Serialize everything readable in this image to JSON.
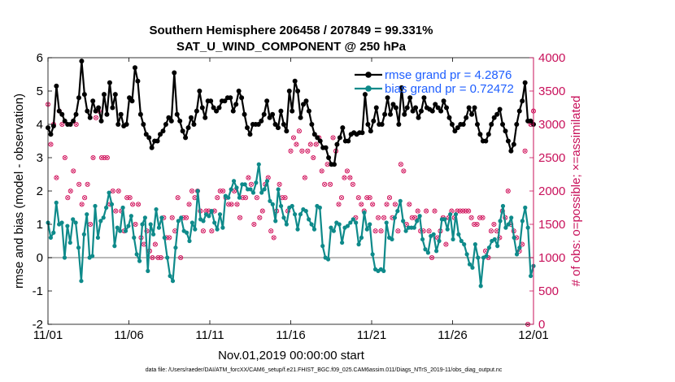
{
  "chart_data": {
    "type": "line",
    "title_line1": "Southern Hemisphere 206458 / 207849 = 99.331%",
    "title_line2": "SAT_U_WIND_COMPONENT @ 250 hPa",
    "xlabel": "Nov.01,2019 00:00:00 start",
    "ylabel_left": "rmse and bias (model - observation)",
    "ylabel_right": "# of obs: o=possible; ×=assimilated",
    "footer": "data file: /Users/raeder/DAI/ATM_forcXX/CAM6_setup/f.e21.FHIST_BGC.f09_025.CAM6assim.011/Diags_NTrS_2019-11/obs_diag_output.nc",
    "x_ticks": [
      "11/01",
      "11/06",
      "11/11",
      "11/16",
      "11/21",
      "11/26",
      "12/01"
    ],
    "xlim": [
      0,
      30
    ],
    "y_left_ticks": [
      "-2",
      "-1",
      "0",
      "1",
      "2",
      "3",
      "4",
      "5",
      "6"
    ],
    "ylim_left": [
      -2,
      6
    ],
    "y_right_ticks": [
      "0",
      "500",
      "1000",
      "1500",
      "2000",
      "2500",
      "3000",
      "3500",
      "4000"
    ],
    "ylim_right": [
      0,
      4000
    ],
    "colors": {
      "rmse": "#000000",
      "bias": "#0e8a8a",
      "obs": "#d0105a",
      "zero": "#a0a0a0",
      "right_axis": "#c8105a",
      "legend_text": "#1f5fff"
    },
    "series": [
      {
        "name": "rmse grand pr = 4.2876",
        "axis": "left",
        "values": [
          3.9,
          3.7,
          3.95,
          5.15,
          4.4,
          4.3,
          4.1,
          4.0,
          4.0,
          4.1,
          4.3,
          4.8,
          5.9,
          4.9,
          4.4,
          4.2,
          4.7,
          4.4,
          4.5,
          4.1,
          4.9,
          4.3,
          5.25,
          4.5,
          4.9,
          4.0,
          4.3,
          3.95,
          4.0,
          4.8,
          4.7,
          5.7,
          5.3,
          4.3,
          4.0,
          3.7,
          3.6,
          3.3,
          3.5,
          3.5,
          3.7,
          3.8,
          4.0,
          4.2,
          4.1,
          5.55,
          4.3,
          4.1,
          3.8,
          3.6,
          3.9,
          4.2,
          4.0,
          4.4,
          5.0,
          4.5,
          4.2,
          4.7,
          4.7,
          4.5,
          4.4,
          4.5,
          4.7,
          4.7,
          4.8,
          4.8,
          4.4,
          4.6,
          5.0,
          4.8,
          4.3,
          3.9,
          3.7,
          4.0,
          4.0,
          4.0,
          4.1,
          4.3,
          4.7,
          4.2,
          4.3,
          4.0,
          3.9,
          4.4,
          4.0,
          3.8,
          5.0,
          4.4,
          5.3,
          5.0,
          4.2,
          4.6,
          4.7,
          4.4,
          4.0,
          3.7,
          3.6,
          3.5,
          3.3,
          3.3,
          3.0,
          2.8,
          2.8,
          3.4,
          3.6,
          3.9,
          3.5,
          3.5,
          3.7,
          3.75,
          3.7,
          3.75,
          3.75,
          4.9,
          4.0,
          3.8,
          4.1,
          4.5,
          4.0,
          4.0,
          4.3,
          4.8,
          4.3,
          4.6,
          4.5,
          4.0,
          5.1,
          4.3,
          4.5,
          4.8,
          4.4,
          4.5,
          4.2,
          4.4,
          4.8,
          4.5,
          4.45,
          4.4,
          4.6,
          4.5,
          4.4,
          4.7,
          4.5,
          4.2,
          4.0,
          3.8,
          3.9,
          4.0,
          4.0,
          4.2,
          4.5,
          4.3,
          4.5,
          4.0,
          3.7,
          3.5,
          3.5,
          3.7,
          4.0,
          4.2,
          4.3,
          4.45,
          4.0,
          3.8,
          3.5,
          3.2,
          3.4,
          4.0,
          4.4,
          4.7,
          5.25,
          4.1,
          4.1,
          4.0
        ]
      },
      {
        "name": "bias grand pr = 0.72472",
        "axis": "left",
        "values": [
          1.05,
          0.6,
          0.75,
          1.65,
          1.0,
          1.05,
          0.0,
          0.95,
          0.45,
          1.15,
          1.05,
          0.3,
          -0.7,
          0.7,
          1.3,
          0.0,
          0.05,
          1.55,
          0.6,
          1.1,
          1.2,
          1.5,
          1.95,
          1.6,
          0.35,
          0.9,
          0.8,
          1.5,
          0.8,
          0.95,
          1.25,
          0.6,
          0.1,
          -0.1,
          1.0,
          1.2,
          -0.4,
          1.0,
          0.7,
          1.45,
          0.9,
          1.2,
          0.6,
          0.0,
          -0.55,
          -0.7,
          0.3,
          1.1,
          1.2,
          0.8,
          0.75,
          0.5,
          1.05,
          0.85,
          2.0,
          1.15,
          1.1,
          1.3,
          1.25,
          1.4,
          1.05,
          0.85,
          1.3,
          0.9,
          1.85,
          1.8,
          2.05,
          2.3,
          2.1,
          1.8,
          2.2,
          2.2,
          2.05,
          2.05,
          1.95,
          2.25,
          2.8,
          1.95,
          2.05,
          2.3,
          1.7,
          1.6,
          1.1,
          2.05,
          1.55,
          1.2,
          1.0,
          1.5,
          1.55,
          1.3,
          0.85,
          1.3,
          1.45,
          1.4,
          1.15,
          1.0,
          0.85,
          1.55,
          1.5,
          0.35,
          0.0,
          -0.05,
          0.9,
          0.8,
          1.05,
          1.0,
          0.45,
          0.9,
          0.95,
          1.05,
          1.15,
          1.05,
          0.4,
          0.6,
          1.35,
          0.85,
          1.0,
          0.1,
          -0.35,
          -0.4,
          -0.35,
          -0.4,
          1.05,
          0.6,
          0.55,
          1.2,
          1.4,
          1.7,
          1.1,
          0.8,
          0.9,
          0.9,
          0.9,
          1.1,
          1.25,
          0.55,
          0.25,
          0.15,
          0.65,
          0.7,
          0.2,
          0.5,
          1.15,
          1.15,
          0.85,
          1.3,
          0.55,
          1.3,
          0.7,
          0.5,
          0.4,
          0.1,
          -0.2,
          -0.3,
          0.4,
          0.0,
          -0.85,
          0.0,
          0.05,
          0.3,
          0.5,
          0.55,
          0.35,
          1.1,
          1.55,
          0.9,
          1.0,
          1.2,
          0.6,
          0.1,
          0.3,
          1.1,
          1.5,
          0.9,
          -0.55,
          -0.25
        ]
      },
      {
        "name": "# obs possible",
        "axis": "right",
        "values": [
          3300,
          2700,
          3000,
          2200,
          3200,
          3000,
          2500,
          1900,
          2000,
          2300,
          3000,
          2100,
          1800,
          1900,
          2100,
          1500,
          2500,
          3100,
          3200,
          2500,
          2500,
          2500,
          1800,
          2000,
          1700,
          2000,
          1700,
          1400,
          1900,
          1900,
          1800,
          1500,
          1800,
          1300,
          1200,
          1400,
          1100,
          1000,
          1200,
          1000,
          1000,
          1600,
          1300,
          1300,
          1600,
          1400,
          1900,
          1000,
          1600,
          1600,
          1800,
          2000,
          1900,
          2000,
          1700,
          1400,
          1700,
          1700,
          1400,
          1700,
          1900,
          2000,
          2000,
          1900,
          1800,
          1800,
          2000,
          1800,
          1600,
          1900,
          1900,
          2200,
          2100,
          1500,
          1900,
          1600,
          1700,
          2100,
          2200,
          1400,
          1300,
          1700,
          2100,
          1900,
          1900,
          1700,
          2600,
          2800,
          2700,
          2900,
          2600,
          2200,
          2600,
          2700,
          2500,
          2700,
          2800,
          2300,
          2100,
          2400,
          2100,
          2800,
          2600,
          1800,
          1900,
          2200,
          2300,
          2200,
          2100,
          1600,
          1900,
          1800,
          1700,
          1900,
          1900,
          1800,
          1400,
          1600,
          1400,
          1600,
          1800,
          1900,
          1600,
          1800,
          1400,
          2400,
          2300,
          1500,
          1800,
          1600,
          1600,
          1700,
          1400,
          1400,
          1700,
          1400,
          1000,
          1700,
          1300,
          1400,
          1600,
          1200,
          1600,
          1700,
          1600,
          1700,
          1700,
          1700,
          1700,
          1700,
          1600,
          1500,
          1500,
          1600,
          1600,
          1100,
          1000,
          1400,
          1500,
          1400,
          1300,
          1700,
          1600,
          2000,
          1500,
          1400,
          1300,
          1100,
          1200,
          2600,
          0,
          3000,
          3200
        ]
      }
    ]
  }
}
